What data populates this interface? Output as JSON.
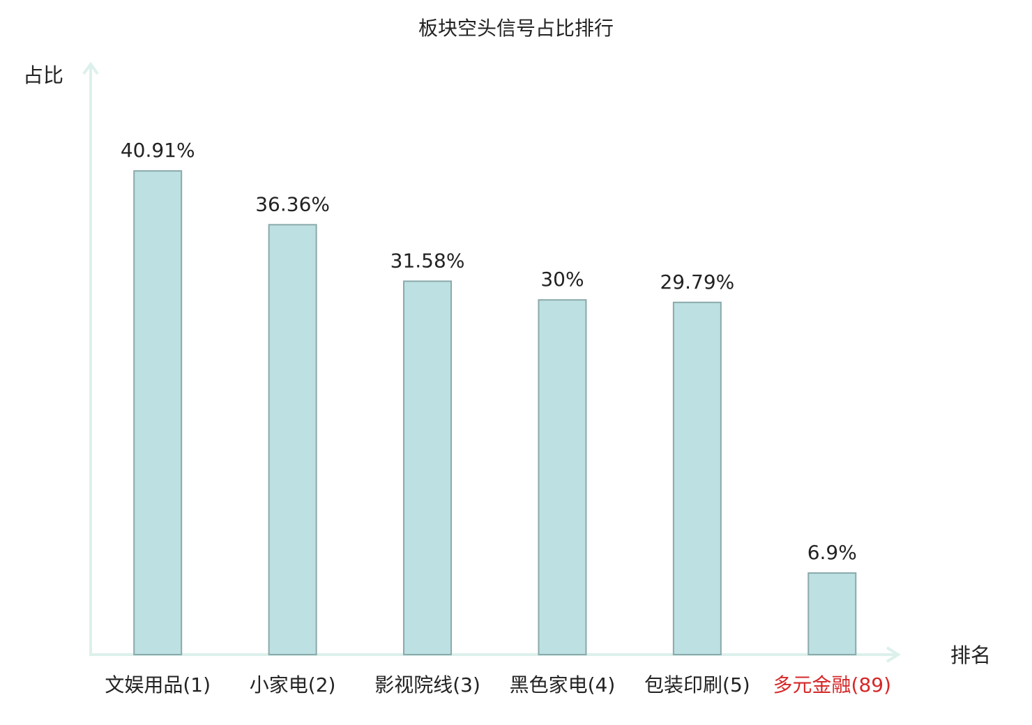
{
  "chart_data": {
    "type": "bar",
    "title": "板块空头信号占比排行",
    "y_label": "占比",
    "x_label": "排名",
    "categories": [
      "文娱用品(1)",
      "小家电(2)",
      "影视院线(3)",
      "黑色家电(4)",
      "包装印刷(5)",
      "多元金融(89)"
    ],
    "category_label_colors": [
      "#222222",
      "#222222",
      "#222222",
      "#222222",
      "#222222",
      "#d62728"
    ],
    "values": [
      40.91,
      36.36,
      31.58,
      30,
      29.79,
      6.9
    ],
    "value_labels": [
      "40.91%",
      "36.36%",
      "31.58%",
      "30%",
      "29.79%",
      "6.9%"
    ],
    "color": "#bde0e2",
    "edge_color": "#8aa9aa",
    "ylim": [
      0,
      50
    ]
  }
}
